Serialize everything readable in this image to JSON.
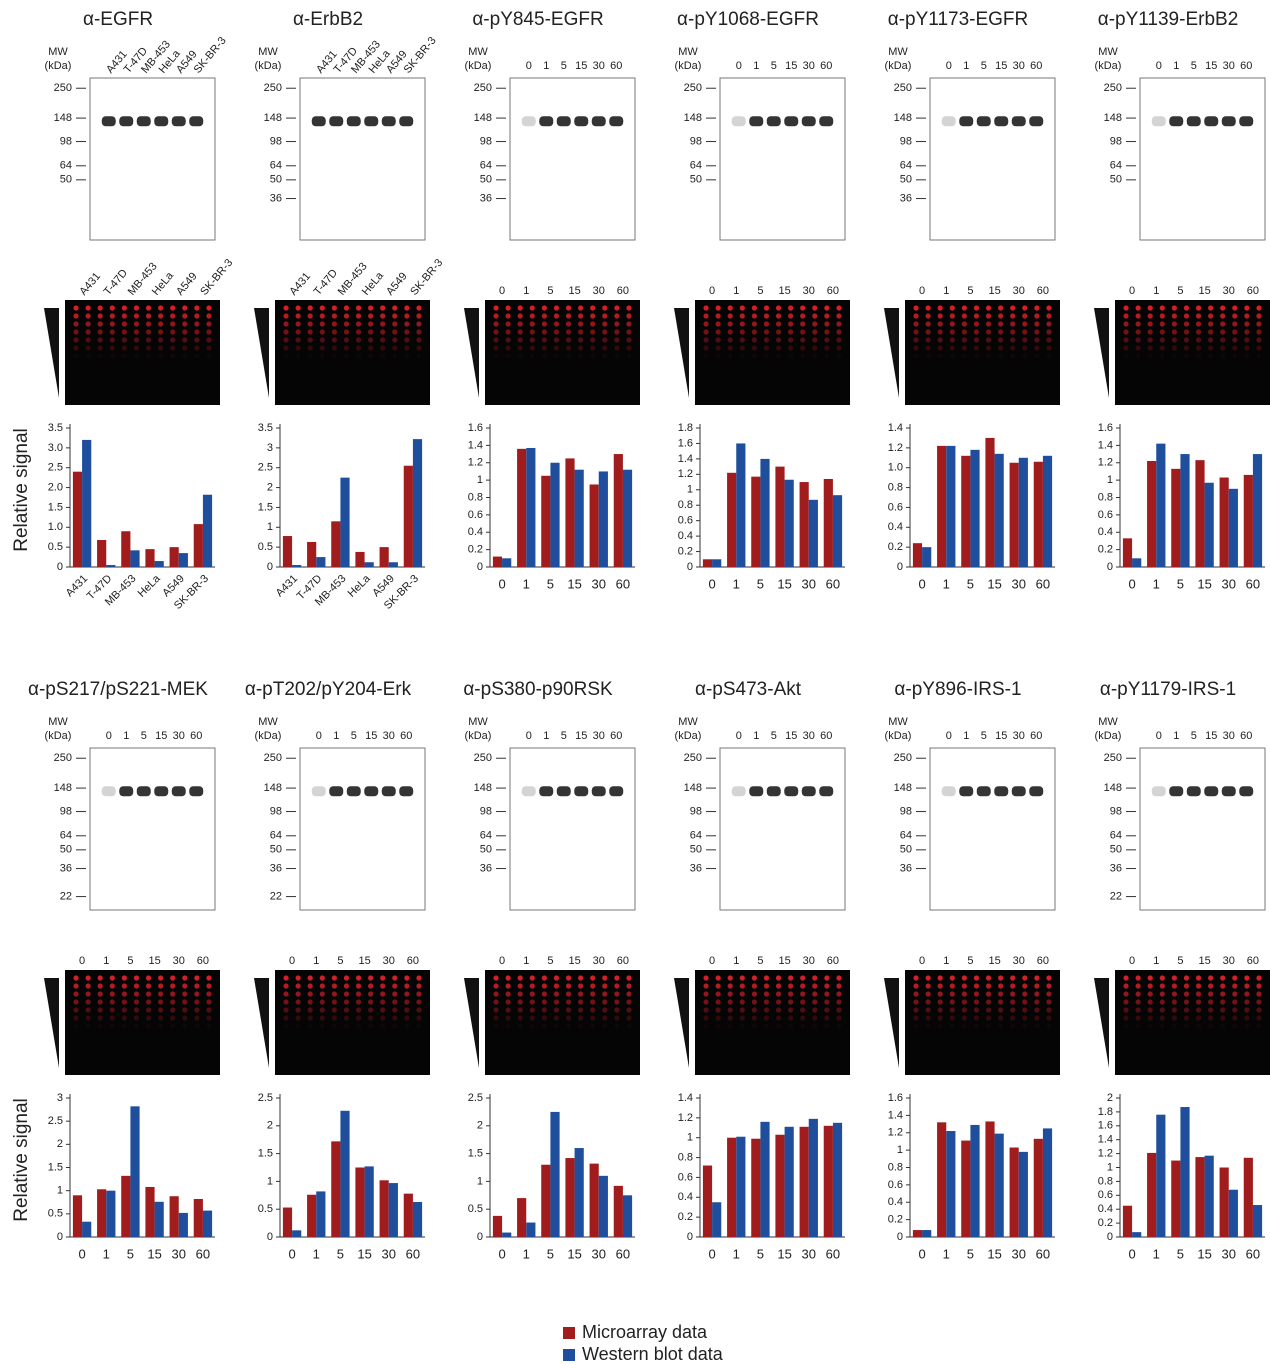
{
  "blot_axis": {
    "label": "MW",
    "unit": "(kDa)"
  },
  "chart_data": [
    {
      "type": "bar",
      "title": "α-EGFR",
      "ylabel": "Relative signal",
      "mw_markers": [
        250,
        148,
        98,
        64,
        50
      ],
      "categories": [
        "A431",
        "T-47D",
        "MB-453",
        "HeLa",
        "A549",
        "SK-BR-3"
      ],
      "series": [
        {
          "name": "Microarray data",
          "color": "#a11d1d",
          "values": [
            2.4,
            0.68,
            0.9,
            0.45,
            0.5,
            1.08
          ]
        },
        {
          "name": "Western blot data",
          "color": "#1f4f9c",
          "values": [
            3.2,
            0.05,
            0.42,
            0.15,
            0.35,
            1.82
          ]
        }
      ],
      "ylim": [
        0,
        3.5
      ],
      "yticks": [
        0,
        0.5,
        {
          "value": 1,
          "label": "1.0"
        },
        1.5,
        {
          "value": 2,
          "label": "2.0"
        },
        2.5,
        {
          "value": 3,
          "label": "3.0"
        },
        3.5
      ]
    },
    {
      "type": "bar",
      "title": "α-ErbB2",
      "mw_markers": [
        250,
        148,
        98,
        64,
        50,
        36
      ],
      "categories": [
        "A431",
        "T-47D",
        "MB-453",
        "HeLa",
        "A549",
        "SK-BR-3"
      ],
      "series": [
        {
          "name": "Microarray data",
          "color": "#a11d1d",
          "values": [
            0.78,
            0.63,
            1.15,
            0.38,
            0.5,
            2.55
          ]
        },
        {
          "name": "Western blot data",
          "color": "#1f4f9c",
          "values": [
            0.05,
            0.25,
            2.25,
            0.12,
            0.12,
            3.22
          ]
        }
      ],
      "ylim": [
        0,
        3.5
      ],
      "yticks": [
        0,
        0.5,
        1,
        1.5,
        2,
        2.5,
        3,
        3.5
      ]
    },
    {
      "type": "bar",
      "title": "α-pY845-EGFR",
      "mw_markers": [
        250,
        148,
        98,
        64,
        50,
        36
      ],
      "categories": [
        "0",
        "1",
        "5",
        "15",
        "30",
        "60"
      ],
      "series": [
        {
          "name": "Microarray data",
          "color": "#a11d1d",
          "values": [
            0.12,
            1.36,
            1.05,
            1.25,
            0.95,
            1.3
          ]
        },
        {
          "name": "Western blot data",
          "color": "#1f4f9c",
          "values": [
            0.1,
            1.37,
            1.2,
            1.12,
            1.1,
            1.12
          ]
        }
      ],
      "ylim": [
        0,
        1.6
      ],
      "yticks": [
        0,
        0.2,
        0.4,
        0.6,
        0.8,
        1,
        1.2,
        1.4,
        1.6
      ]
    },
    {
      "type": "bar",
      "title": "α-pY1068-EGFR",
      "mw_markers": [
        250,
        148,
        98,
        64,
        50
      ],
      "categories": [
        "0",
        "1",
        "5",
        "15",
        "30",
        "60"
      ],
      "series": [
        {
          "name": "Microarray data",
          "color": "#a11d1d",
          "values": [
            0.1,
            1.22,
            1.17,
            1.3,
            1.1,
            1.14
          ]
        },
        {
          "name": "Western blot data",
          "color": "#1f4f9c",
          "values": [
            0.1,
            1.6,
            1.4,
            1.13,
            0.87,
            0.93
          ]
        }
      ],
      "ylim": [
        0,
        1.8
      ],
      "yticks": [
        0,
        0.2,
        0.4,
        0.6,
        0.8,
        1,
        1.2,
        1.4,
        1.6,
        1.8
      ]
    },
    {
      "type": "bar",
      "title": "α-pY1173-EGFR",
      "mw_markers": [
        250,
        148,
        98,
        64,
        50,
        36
      ],
      "categories": [
        "0",
        "1",
        "5",
        "15",
        "30",
        "60"
      ],
      "series": [
        {
          "name": "Microarray data",
          "color": "#a11d1d",
          "values": [
            0.24,
            1.22,
            1.12,
            1.3,
            1.05,
            1.06
          ]
        },
        {
          "name": "Western blot data",
          "color": "#1f4f9c",
          "values": [
            0.2,
            1.22,
            1.18,
            1.14,
            1.1,
            1.12
          ]
        }
      ],
      "ylim": [
        0,
        1.4
      ],
      "yticks": [
        0,
        0.2,
        0.4,
        0.6,
        0.8,
        {
          "value": 1,
          "label": "1.0"
        },
        1.2,
        1.4
      ]
    },
    {
      "type": "bar",
      "title": "α-pY1139-ErbB2",
      "mw_markers": [
        250,
        148,
        98,
        64,
        50
      ],
      "categories": [
        "0",
        "1",
        "5",
        "15",
        "30",
        "60"
      ],
      "series": [
        {
          "name": "Microarray data",
          "color": "#a11d1d",
          "values": [
            0.33,
            1.22,
            1.13,
            1.23,
            1.03,
            1.06
          ]
        },
        {
          "name": "Western blot data",
          "color": "#1f4f9c",
          "values": [
            0.1,
            1.42,
            1.3,
            0.97,
            0.9,
            1.3
          ]
        }
      ],
      "ylim": [
        0,
        1.6
      ],
      "yticks": [
        0,
        0.2,
        0.4,
        0.6,
        0.8,
        1,
        1.2,
        1.4,
        1.6
      ]
    },
    {
      "type": "bar",
      "title": "α-pS217/pS221-MEK",
      "ylabel": "Relative signal",
      "mw_markers": [
        250,
        148,
        98,
        64,
        50,
        36,
        22
      ],
      "categories": [
        "0",
        "1",
        "5",
        "15",
        "30",
        "60"
      ],
      "series": [
        {
          "name": "Microarray data",
          "color": "#a11d1d",
          "values": [
            0.9,
            1.03,
            1.32,
            1.08,
            0.88,
            0.82
          ]
        },
        {
          "name": "Western blot data",
          "color": "#1f4f9c",
          "values": [
            0.33,
            1.0,
            2.82,
            0.76,
            0.52,
            0.57
          ]
        }
      ],
      "ylim": [
        0,
        3
      ],
      "yticks": [
        0,
        0.5,
        1,
        1.5,
        2,
        2.5,
        3
      ]
    },
    {
      "type": "bar",
      "title": "α-pT202/pY204-Erk",
      "mw_markers": [
        250,
        148,
        98,
        64,
        50,
        36,
        22
      ],
      "categories": [
        "0",
        "1",
        "5",
        "15",
        "30",
        "60"
      ],
      "series": [
        {
          "name": "Microarray data",
          "color": "#a11d1d",
          "values": [
            0.53,
            0.76,
            1.72,
            1.25,
            1.02,
            0.78
          ]
        },
        {
          "name": "Western blot data",
          "color": "#1f4f9c",
          "values": [
            0.12,
            0.82,
            2.27,
            1.27,
            0.97,
            0.63
          ]
        }
      ],
      "ylim": [
        0,
        2.5
      ],
      "yticks": [
        0,
        0.5,
        1,
        1.5,
        2,
        2.5
      ]
    },
    {
      "type": "bar",
      "title": "α-pS380-p90RSK",
      "mw_markers": [
        250,
        148,
        98,
        64,
        50,
        36
      ],
      "categories": [
        "0",
        "1",
        "5",
        "15",
        "30",
        "60"
      ],
      "series": [
        {
          "name": "Microarray data",
          "color": "#a11d1d",
          "values": [
            0.38,
            0.7,
            1.3,
            1.42,
            1.32,
            0.92
          ]
        },
        {
          "name": "Western blot data",
          "color": "#1f4f9c",
          "values": [
            0.08,
            0.26,
            2.25,
            1.6,
            1.1,
            0.75
          ]
        }
      ],
      "ylim": [
        0,
        2.5
      ],
      "yticks": [
        0,
        0.5,
        1,
        1.5,
        2,
        2.5
      ]
    },
    {
      "type": "bar",
      "title": "α-pS473-Akt",
      "mw_markers": [
        250,
        148,
        98,
        64,
        50,
        36
      ],
      "categories": [
        "0",
        "1",
        "5",
        "15",
        "30",
        "60"
      ],
      "series": [
        {
          "name": "Microarray data",
          "color": "#a11d1d",
          "values": [
            0.72,
            1.0,
            0.99,
            1.03,
            1.11,
            1.12
          ]
        },
        {
          "name": "Western blot data",
          "color": "#1f4f9c",
          "values": [
            0.35,
            1.01,
            1.16,
            1.11,
            1.19,
            1.15
          ]
        }
      ],
      "ylim": [
        0,
        1.4
      ],
      "yticks": [
        0,
        0.2,
        0.4,
        0.6,
        0.8,
        1,
        1.2,
        1.4
      ]
    },
    {
      "type": "bar",
      "title": "α-pY896-IRS-1",
      "mw_markers": [
        250,
        148,
        98,
        64,
        50,
        36
      ],
      "categories": [
        "0",
        "1",
        "5",
        "15",
        "30",
        "60"
      ],
      "series": [
        {
          "name": "Microarray data",
          "color": "#a11d1d",
          "values": [
            0.08,
            1.32,
            1.11,
            1.33,
            1.03,
            1.13
          ]
        },
        {
          "name": "Western blot data",
          "color": "#1f4f9c",
          "values": [
            0.08,
            1.22,
            1.29,
            1.19,
            0.98,
            1.25
          ]
        }
      ],
      "ylim": [
        0,
        1.6
      ],
      "yticks": [
        0,
        0.2,
        0.4,
        0.6,
        0.8,
        1,
        1.2,
        1.4,
        1.6
      ]
    },
    {
      "type": "bar",
      "title": "α-pY1179-IRS-1",
      "mw_markers": [
        250,
        148,
        98,
        64,
        50,
        36,
        22
      ],
      "categories": [
        "0",
        "1",
        "5",
        "15",
        "30",
        "60"
      ],
      "series": [
        {
          "name": "Microarray data",
          "color": "#a11d1d",
          "values": [
            0.45,
            1.21,
            1.1,
            1.15,
            1.0,
            1.14
          ]
        },
        {
          "name": "Western blot data",
          "color": "#1f4f9c",
          "values": [
            0.07,
            1.76,
            1.87,
            1.17,
            0.68,
            0.46
          ]
        }
      ],
      "ylim": [
        0,
        2
      ],
      "yticks": [
        0,
        0.2,
        0.4,
        0.6,
        0.8,
        1,
        1.2,
        1.4,
        1.6,
        1.8,
        2
      ]
    }
  ]
}
